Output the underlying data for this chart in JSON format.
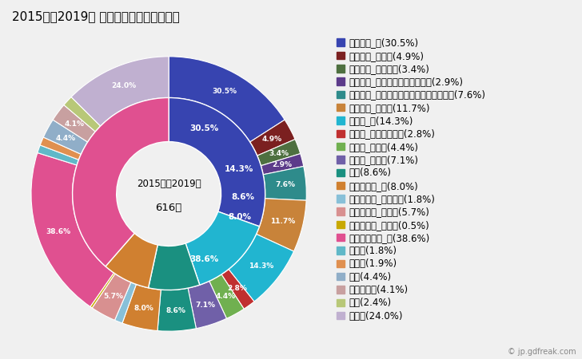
{
  "title": "2015年～2019年 遊佐町の男性の死因構成",
  "center_text_line1": "2015年～2019年",
  "center_text_line2": "616人",
  "outer_segments": [
    {
      "label": "悪性腫瘍_計(30.5%)",
      "value": 30.5,
      "color": "#3744b0",
      "text": "30.5%"
    },
    {
      "label": "悪性腫瘍_胃がん(4.9%)",
      "value": 4.9,
      "color": "#7b2020",
      "text": "4.9%"
    },
    {
      "label": "悪性腫瘍_大腸がん(3.4%)",
      "value": 3.4,
      "color": "#4e7040",
      "text": "3.4%"
    },
    {
      "label": "悪性腫瘍_肝がん・肝内胆管がん(2.9%)",
      "value": 2.9,
      "color": "#5c3b8a",
      "text": "2.9%"
    },
    {
      "label": "悪性腫瘍_気管がん・気管支がん・肺がん(7.6%)",
      "value": 7.6,
      "color": "#2e8b8b",
      "text": "7.6%"
    },
    {
      "label": "悪性腫瘍_その他(11.7%)",
      "value": 11.7,
      "color": "#c8833a",
      "text": "11.7%"
    },
    {
      "label": "心疾患_計(14.3%)",
      "value": 14.3,
      "color": "#21b5d0",
      "text": "14.3%"
    },
    {
      "label": "心疾患_急性心筋梗塞(2.8%)",
      "value": 2.8,
      "color": "#c03030",
      "text": "2.8%"
    },
    {
      "label": "心疾患_心不全(4.4%)",
      "value": 4.4,
      "color": "#70b050",
      "text": "4.4%"
    },
    {
      "label": "心疾患_その他(7.1%)",
      "value": 7.1,
      "color": "#7060a8",
      "text": "7.1%"
    },
    {
      "label": "肺炎(8.6%)",
      "value": 8.6,
      "color": "#1a9080",
      "text": "8.6%"
    },
    {
      "label": "脳血管疾患_計(8.0%)",
      "value": 8.0,
      "color": "#d08030",
      "text": "8.0%"
    },
    {
      "label": "脳血管疾患_脳内出血(1.8%)",
      "value": 1.8,
      "color": "#88c0d8",
      "text": "1.8%"
    },
    {
      "label": "脳血管疾患_脳梗塞(5.7%)",
      "value": 5.7,
      "color": "#d89090",
      "text": "5.7%"
    },
    {
      "label": "脳血管疾患_その他(0.5%)",
      "value": 0.5,
      "color": "#c8a800",
      "text": "0.5%"
    },
    {
      "label": "その他の死因_計(38.6%)",
      "value": 38.6,
      "color": "#e05090",
      "text": "38.6%"
    },
    {
      "label": "肝疾患(1.8%)",
      "value": 1.8,
      "color": "#60b8c8",
      "text": "1.8%"
    },
    {
      "label": "腎不全(1.9%)",
      "value": 1.9,
      "color": "#e09050",
      "text": "1.9%"
    },
    {
      "label": "老衰(4.4%)",
      "value": 4.4,
      "color": "#90aec8",
      "text": "4.4%"
    },
    {
      "label": "不慮の事故(4.1%)",
      "value": 4.1,
      "color": "#c8a0a0",
      "text": "4.1%"
    },
    {
      "label": "自殺(2.4%)",
      "value": 2.4,
      "color": "#b8c878",
      "text": "2.4%"
    },
    {
      "label": "その他(24.0%)",
      "value": 24.0,
      "color": "#c0b0d0",
      "text": "24.0%"
    }
  ],
  "inner_segments": [
    {
      "label": "悪性腫瘍_計",
      "value": 30.5,
      "color": "#3744b0",
      "text": "30.5%"
    },
    {
      "label": "心疾患_計",
      "value": 14.3,
      "color": "#21b5d0",
      "text": "14.3%"
    },
    {
      "label": "肺炎",
      "value": 8.6,
      "color": "#1a9080",
      "text": "8.6%"
    },
    {
      "label": "脳血管疾患_計",
      "value": 8.0,
      "color": "#d08030",
      "text": "8.0%"
    },
    {
      "label": "その他の死因_計",
      "value": 38.6,
      "color": "#e05090",
      "text": "38.6%"
    }
  ],
  "background_color": "#f0f0f0",
  "legend_fontsize": 8.5,
  "title_fontsize": 11
}
